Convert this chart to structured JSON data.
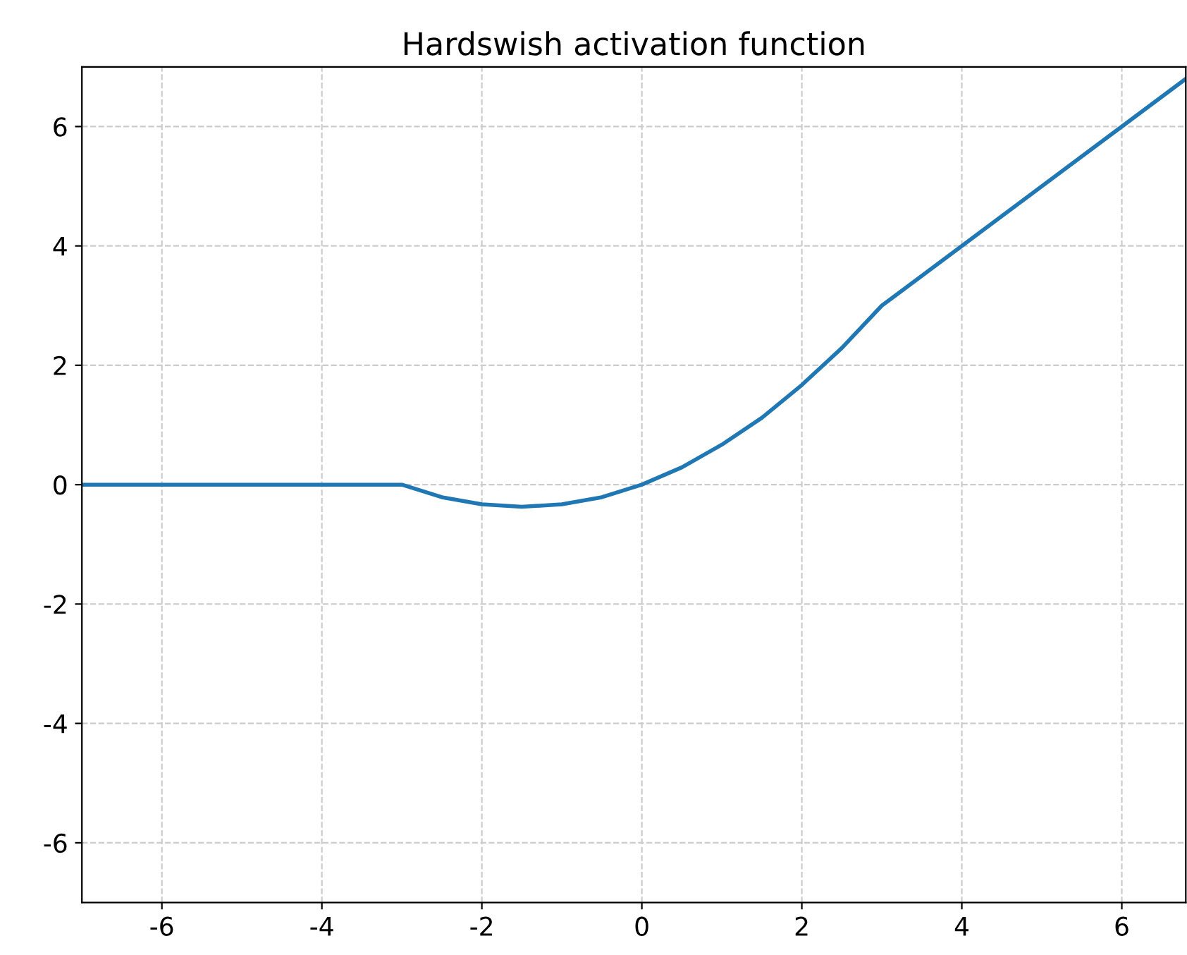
{
  "chart_data": {
    "type": "line",
    "title": "Hardswish activation function",
    "x": [
      -7,
      -3,
      -2.5,
      -2,
      -1.5,
      -1,
      -0.5,
      0,
      0.5,
      1,
      1.5,
      2,
      2.5,
      3,
      6.8
    ],
    "series": [
      {
        "color": "#1f77b4",
        "values": [
          0,
          0,
          -0.21,
          -0.33,
          -0.37,
          -0.33,
          -0.21,
          0,
          0.29,
          0.67,
          1.12,
          1.67,
          2.29,
          3,
          6.8
        ]
      }
    ],
    "xlim": [
      -7,
      6.8
    ],
    "ylim": [
      -7,
      7
    ],
    "xticks": [
      -6,
      -4,
      -2,
      0,
      2,
      4,
      6
    ],
    "yticks": [
      -6,
      -4,
      -2,
      0,
      2,
      4,
      6
    ],
    "grid": true,
    "line_style": "solid",
    "marker": "none",
    "legend": false
  }
}
